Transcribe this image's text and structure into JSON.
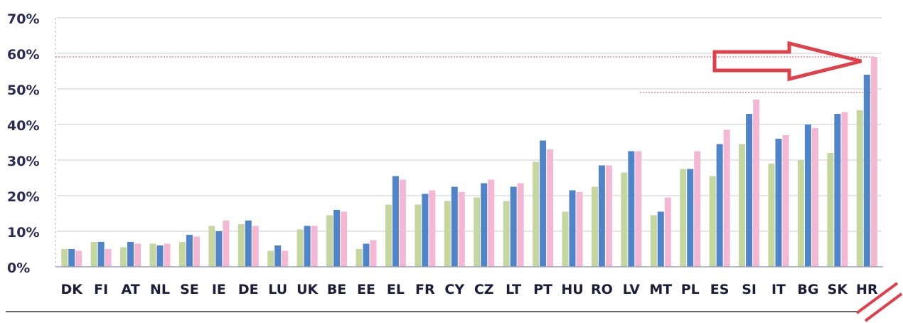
{
  "chart_data": {
    "type": "bar",
    "title": "",
    "xlabel": "",
    "ylabel": "",
    "ylim": [
      0,
      70
    ],
    "ytick_step": 10,
    "ytick_suffix": "%",
    "grid": true,
    "legend": "none",
    "categories": [
      "DK",
      "FI",
      "AT",
      "NL",
      "SE",
      "IE",
      "DE",
      "LU",
      "UK",
      "BE",
      "EE",
      "EL",
      "FR",
      "CY",
      "CZ",
      "LT",
      "PT",
      "HU",
      "RO",
      "LV",
      "MT",
      "PL",
      "ES",
      "SI",
      "IT",
      "BG",
      "SK",
      "HR"
    ],
    "series": [
      {
        "color": "#c6d69f",
        "values": [
          5,
          7,
          5.5,
          6.5,
          7,
          11.5,
          12,
          4.5,
          10.5,
          14.5,
          5,
          17.5,
          17.5,
          18.5,
          19.5,
          18.5,
          29.5,
          15.5,
          22.5,
          26.5,
          14.5,
          27.5,
          25.5,
          34.5,
          29,
          30,
          32,
          44
        ]
      },
      {
        "color": "#4f84c8",
        "values": [
          5,
          7,
          7,
          6,
          9,
          10,
          13,
          6,
          11.5,
          16,
          6.5,
          25.5,
          20.5,
          22.5,
          23.5,
          22.5,
          35.5,
          21.5,
          28.5,
          32.5,
          15.5,
          27.5,
          34.5,
          43,
          36,
          40,
          43,
          54
        ]
      },
      {
        "color": "#f4b8d4",
        "values": [
          4.5,
          5,
          6.5,
          6.5,
          8.5,
          13,
          11.5,
          4.5,
          11.5,
          15.5,
          7.5,
          24.5,
          21.5,
          21,
          24.5,
          23.5,
          33,
          21,
          28.5,
          32.5,
          19.5,
          32.5,
          38.5,
          47,
          37,
          39,
          43.5,
          59
        ]
      }
    ],
    "annotations": {
      "arrow_color": "#e0404a",
      "arrow_points_to": "HR",
      "arrow_value": 59,
      "reference_lines": [
        59,
        49
      ],
      "break_marks_color": "#e0404a"
    }
  }
}
